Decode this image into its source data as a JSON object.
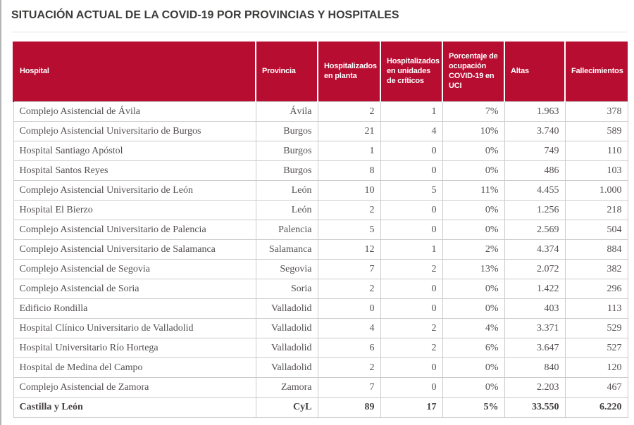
{
  "page": {
    "title": "SITUACIÓN ACTUAL DE LA COVID-19 POR PROVINCIAS Y HOSPITALES"
  },
  "colors": {
    "header_background": "#b60d31",
    "header_text": "#ffffff",
    "body_text": "#544f4f",
    "title_text": "#3c3c3b",
    "grid_border": "#cccccc"
  },
  "table": {
    "columns": [
      "Hospital",
      "Provincia",
      "Hospitalizados en planta",
      "Hospitalizados en unidades de críticos",
      "Porcentaje de ocupación COVID-19 en UCI",
      "Altas",
      "Fallecimientos"
    ],
    "column_keys": [
      "hospital",
      "provincia",
      "hospitalizados-planta",
      "hospitalizados-criticos",
      "ocupacion-uci",
      "altas",
      "fallecimientos"
    ],
    "rows": [
      [
        "Complejo Asistencial de Ávila",
        "Ávila",
        "2",
        "1",
        "7%",
        "1.963",
        "378"
      ],
      [
        "Complejo Asistencial Universitario de Burgos",
        "Burgos",
        "21",
        "4",
        "10%",
        "3.740",
        "589"
      ],
      [
        "Hospital Santiago Apóstol",
        "Burgos",
        "1",
        "0",
        "0%",
        "749",
        "110"
      ],
      [
        "Hospital Santos Reyes",
        "Burgos",
        "8",
        "0",
        "0%",
        "486",
        "103"
      ],
      [
        "Complejo Asistencial Universitario de León",
        "León",
        "10",
        "5",
        "11%",
        "4.455",
        "1.000"
      ],
      [
        "Hospital El Bierzo",
        "León",
        "2",
        "0",
        "0%",
        "1.256",
        "218"
      ],
      [
        "Complejo Asistencial Universitario de Palencia",
        "Palencia",
        "5",
        "0",
        "0%",
        "2.569",
        "504"
      ],
      [
        "Complejo Asistencial Universitario de Salamanca",
        "Salamanca",
        "12",
        "1",
        "2%",
        "4.374",
        "884"
      ],
      [
        "Complejo Asistencial de Segovia",
        "Segovia",
        "7",
        "2",
        "13%",
        "2.072",
        "382"
      ],
      [
        "Complejo Asistencial de Soria",
        "Soria",
        "2",
        "0",
        "0%",
        "1.422",
        "296"
      ],
      [
        "Edificio Rondilla",
        "Valladolid",
        "0",
        "0",
        "0%",
        "403",
        "113"
      ],
      [
        "Hospital Clínico Universitario de Valladolid",
        "Valladolid",
        "4",
        "2",
        "4%",
        "3.371",
        "529"
      ],
      [
        "Hospital Universitario Río Hortega",
        "Valladolid",
        "6",
        "2",
        "6%",
        "3.647",
        "527"
      ],
      [
        "Hospital de Medina del Campo",
        "Valladolid",
        "2",
        "0",
        "0%",
        "840",
        "120"
      ],
      [
        "Complejo Asistencial de Zamora",
        "Zamora",
        "7",
        "0",
        "0%",
        "2.203",
        "467"
      ]
    ],
    "total": [
      "Castilla y León",
      "CyL",
      "89",
      "17",
      "5%",
      "33.550",
      "6.220"
    ]
  }
}
